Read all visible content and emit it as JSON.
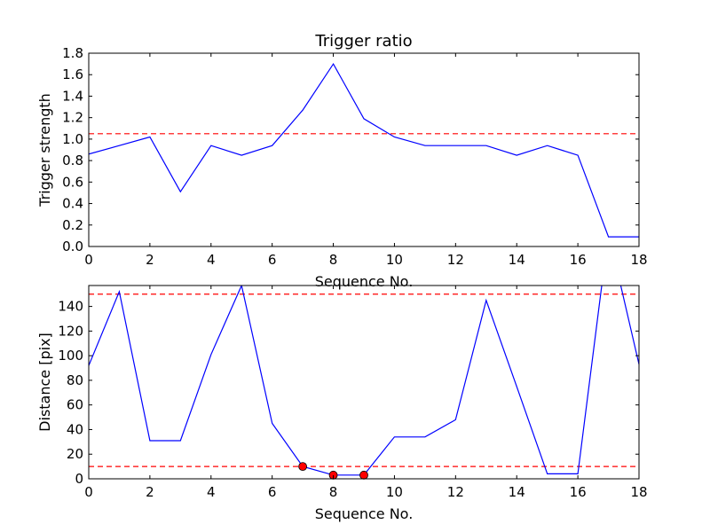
{
  "chart_data": [
    {
      "type": "line",
      "title": "Trigger ratio",
      "xlabel": "Sequence No.",
      "ylabel": "Trigger strength",
      "xlim": [
        0,
        18
      ],
      "ylim": [
        0,
        1.8
      ],
      "xticks": [
        "0",
        "2",
        "4",
        "6",
        "8",
        "10",
        "12",
        "14",
        "16",
        "18"
      ],
      "yticks": [
        "0.0",
        "0.2",
        "0.4",
        "0.6",
        "0.8",
        "1.0",
        "1.2",
        "1.4",
        "1.6",
        "1.8"
      ],
      "grid": false,
      "series": [
        {
          "color": "#0000ff",
          "style": "solid",
          "x": [
            0,
            1,
            2,
            3,
            4,
            5,
            6,
            7,
            8,
            9,
            10,
            11,
            12,
            13,
            14,
            15,
            16,
            17,
            18
          ],
          "values": [
            0.86,
            0.94,
            1.02,
            0.51,
            0.94,
            0.85,
            0.94,
            1.27,
            1.7,
            1.19,
            1.02,
            0.94,
            0.94,
            0.94,
            0.85,
            0.94,
            0.85,
            0.09,
            0.09
          ]
        }
      ],
      "reference_lines": [
        {
          "y": 1.05,
          "color": "#ff0000",
          "style": "dashed"
        }
      ]
    },
    {
      "type": "line",
      "title": "",
      "xlabel": "Sequence No.",
      "ylabel": "Distance [pix]",
      "xlim": [
        0,
        18
      ],
      "ylim": [
        0,
        157
      ],
      "xticks": [
        "0",
        "2",
        "4",
        "6",
        "8",
        "10",
        "12",
        "14",
        "16",
        "18"
      ],
      "yticks": [
        "0",
        "20",
        "40",
        "60",
        "80",
        "100",
        "120",
        "140"
      ],
      "grid": false,
      "series": [
        {
          "color": "#0000ff",
          "style": "solid",
          "x": [
            0,
            1,
            2,
            3,
            4,
            5,
            6,
            7,
            8,
            9,
            10,
            11,
            12,
            13,
            14,
            15,
            16,
            17,
            18
          ],
          "values": [
            92,
            152,
            31,
            31,
            101,
            157,
            45,
            10,
            3,
            3,
            34,
            34,
            48,
            145,
            75,
            4,
            4,
            200,
            93
          ]
        },
        {
          "color": "#ff0000",
          "style": "markers",
          "x": [
            7,
            8,
            9
          ],
          "values": [
            10,
            3,
            3
          ]
        }
      ],
      "reference_lines": [
        {
          "y": 150,
          "color": "#ff0000",
          "style": "dashed"
        },
        {
          "y": 10,
          "color": "#ff0000",
          "style": "dashed"
        }
      ]
    }
  ]
}
